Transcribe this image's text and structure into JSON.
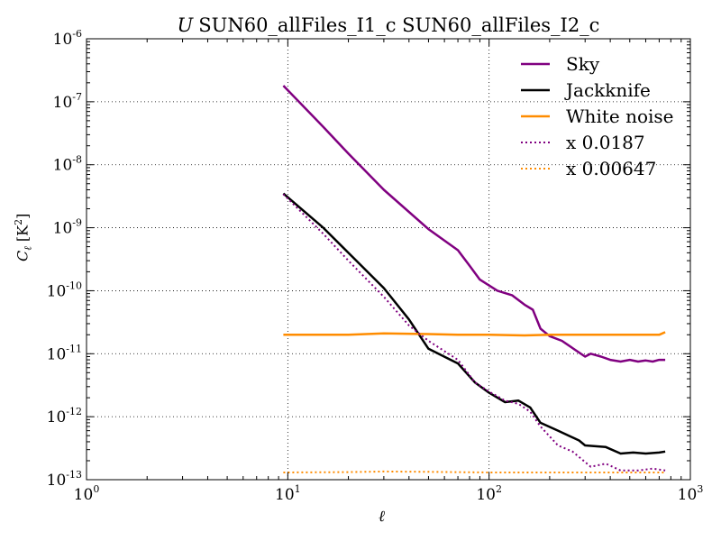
{
  "chart_data": {
    "type": "line",
    "title": "SUN60_allFiles_I1_c SUN60_allFiles_I2_c",
    "title_variable": "U",
    "xlabel": "ℓ",
    "ylabel": "C_ℓ [K²]",
    "xscale": "log",
    "yscale": "log",
    "xlim": [
      1,
      1000
    ],
    "ylim": [
      1e-13,
      1e-06
    ],
    "grid": true,
    "legend_position": "top-right",
    "x_tick_labels": [
      {
        "base": "10",
        "exp": "0",
        "value": 1
      },
      {
        "base": "10",
        "exp": "1",
        "value": 10
      },
      {
        "base": "10",
        "exp": "2",
        "value": 100
      },
      {
        "base": "10",
        "exp": "3",
        "value": 1000
      }
    ],
    "y_tick_labels": [
      {
        "base": "10",
        "exp": "-13",
        "value": 1e-13
      },
      {
        "base": "10",
        "exp": "-12",
        "value": 1e-12
      },
      {
        "base": "10",
        "exp": "-11",
        "value": 1e-11
      },
      {
        "base": "10",
        "exp": "-10",
        "value": 1e-10
      },
      {
        "base": "10",
        "exp": "-9",
        "value": 1e-09
      },
      {
        "base": "10",
        "exp": "-8",
        "value": 1e-08
      },
      {
        "base": "10",
        "exp": "-7",
        "value": 1e-07
      },
      {
        "base": "10",
        "exp": "-6",
        "value": 1e-06
      }
    ],
    "series": [
      {
        "name": "Sky",
        "color": "#800080",
        "style": "solid",
        "points": [
          [
            9.5,
            1.8e-07
          ],
          [
            15,
            4e-08
          ],
          [
            20,
            1.5e-08
          ],
          [
            30,
            4e-09
          ],
          [
            50,
            9.5e-10
          ],
          [
            70,
            4.4e-10
          ],
          [
            80,
            2.5e-10
          ],
          [
            90,
            1.5e-10
          ],
          [
            110,
            1e-10
          ],
          [
            130,
            8.5e-11
          ],
          [
            150,
            6e-11
          ],
          [
            165,
            5e-11
          ],
          [
            180,
            2.5e-11
          ],
          [
            200,
            1.9e-11
          ],
          [
            230,
            1.6e-11
          ],
          [
            300,
            9e-12
          ],
          [
            320,
            1e-11
          ],
          [
            360,
            9e-12
          ],
          [
            400,
            8e-12
          ],
          [
            450,
            7.5e-12
          ],
          [
            500,
            8e-12
          ],
          [
            550,
            7.5e-12
          ],
          [
            600,
            7.8e-12
          ],
          [
            650,
            7.5e-12
          ],
          [
            700,
            8e-12
          ],
          [
            750,
            8e-12
          ]
        ]
      },
      {
        "name": "Jackknife",
        "color": "#000000",
        "style": "solid",
        "points": [
          [
            9.5,
            3.5e-09
          ],
          [
            15,
            1e-09
          ],
          [
            20,
            4e-10
          ],
          [
            30,
            1.1e-10
          ],
          [
            40,
            3.5e-11
          ],
          [
            50,
            1.2e-11
          ],
          [
            70,
            7e-12
          ],
          [
            85,
            3.5e-12
          ],
          [
            100,
            2.4e-12
          ],
          [
            120,
            1.7e-12
          ],
          [
            140,
            1.8e-12
          ],
          [
            160,
            1.4e-12
          ],
          [
            180,
            8e-13
          ],
          [
            220,
            6e-13
          ],
          [
            280,
            4.2e-13
          ],
          [
            300,
            3.5e-13
          ],
          [
            380,
            3.3e-13
          ],
          [
            450,
            2.6e-13
          ],
          [
            520,
            2.7e-13
          ],
          [
            600,
            2.6e-13
          ],
          [
            700,
            2.7e-13
          ],
          [
            750,
            2.8e-13
          ]
        ]
      },
      {
        "name": "White noise",
        "color": "#ff8c00",
        "style": "solid",
        "points": [
          [
            9.5,
            2e-11
          ],
          [
            20,
            2e-11
          ],
          [
            30,
            2.1e-11
          ],
          [
            50,
            2.05e-11
          ],
          [
            70,
            2e-11
          ],
          [
            100,
            2e-11
          ],
          [
            150,
            1.95e-11
          ],
          [
            200,
            2e-11
          ],
          [
            300,
            2e-11
          ],
          [
            500,
            2e-11
          ],
          [
            700,
            2e-11
          ],
          [
            750,
            2.2e-11
          ]
        ]
      },
      {
        "name": "x 0.0187",
        "color": "#800080",
        "style": "dotted",
        "points": [
          [
            9.5,
            3.4e-09
          ],
          [
            15,
            8e-10
          ],
          [
            20,
            3e-10
          ],
          [
            30,
            8e-11
          ],
          [
            40,
            2.8e-11
          ],
          [
            50,
            1.6e-11
          ],
          [
            70,
            8e-12
          ],
          [
            85,
            3.5e-12
          ],
          [
            100,
            2.5e-12
          ],
          [
            120,
            1.8e-12
          ],
          [
            140,
            1.6e-12
          ],
          [
            160,
            1.2e-12
          ],
          [
            180,
            7e-13
          ],
          [
            220,
            3.5e-13
          ],
          [
            260,
            2.8e-13
          ],
          [
            320,
            1.6e-13
          ],
          [
            380,
            1.8e-13
          ],
          [
            450,
            1.4e-13
          ],
          [
            550,
            1.4e-13
          ],
          [
            650,
            1.5e-13
          ],
          [
            750,
            1.4e-13
          ]
        ]
      },
      {
        "name": "x 0.00647",
        "color": "#ff8c00",
        "style": "dotted",
        "points": [
          [
            9.5,
            1.3e-13
          ],
          [
            20,
            1.32e-13
          ],
          [
            30,
            1.35e-13
          ],
          [
            50,
            1.33e-13
          ],
          [
            100,
            1.3e-13
          ],
          [
            200,
            1.3e-13
          ],
          [
            400,
            1.3e-13
          ],
          [
            600,
            1.3e-13
          ],
          [
            750,
            1.3e-13
          ]
        ]
      }
    ]
  }
}
